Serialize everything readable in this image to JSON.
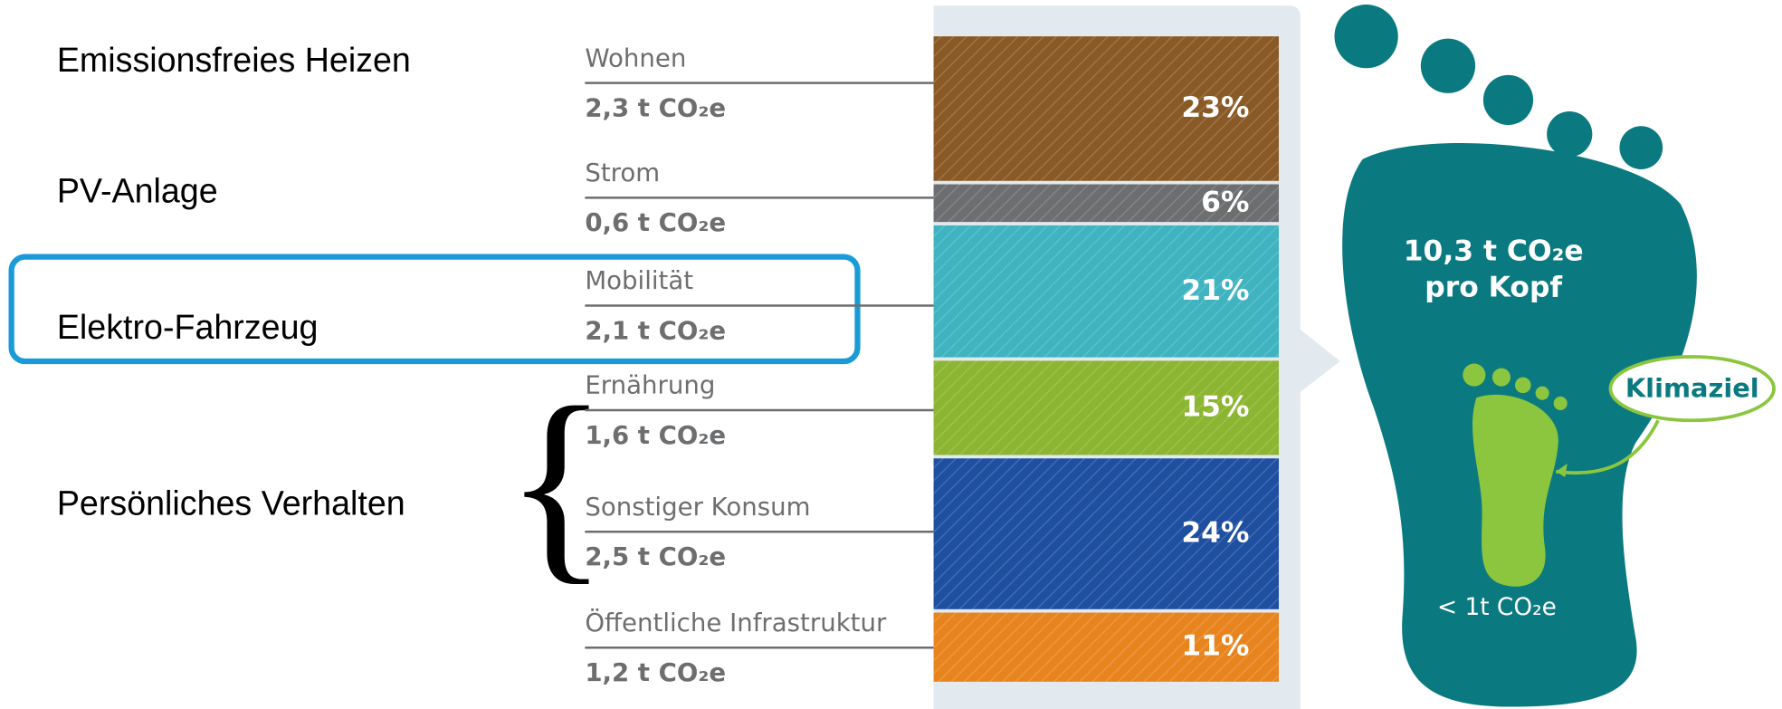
{
  "left_labels": [
    "Emissionsfreies Heizen",
    "PV-Anlage",
    "Elektro-Fahrzeug",
    "Persönliches Verhalten"
  ],
  "sectors": [
    {
      "name": "Wohnen",
      "amount": "2,3 t CO₂e",
      "share": 23,
      "share_label": "23%",
      "color": "#8a5a26"
    },
    {
      "name": "Strom",
      "amount": "0,6 t CO₂e",
      "share": 6,
      "share_label": "6%",
      "color": "#6d6e70"
    },
    {
      "name": "Mobilität",
      "amount": "2,1 t CO₂e",
      "share": 21,
      "share_label": "21%",
      "color": "#3fb3c0"
    },
    {
      "name": "Ernährung",
      "amount": "1,6 t CO₂e",
      "share": 15,
      "share_label": "15%",
      "color": "#8cb531"
    },
    {
      "name": "Sonstiger Konsum",
      "amount": "2,5 t CO₂e",
      "share": 24,
      "share_label": "24%",
      "color": "#1f4fa0"
    },
    {
      "name": "Öffentliche Infrastruktur",
      "amount": "1,2 t CO₂e",
      "share": 11,
      "share_label": "11%",
      "color": "#e8841e"
    }
  ],
  "footprint": {
    "total": "10,3 t CO₂e",
    "unit": "pro Kopf",
    "target_label": "Klimaziel",
    "target_value": "< 1t CO₂e"
  }
}
